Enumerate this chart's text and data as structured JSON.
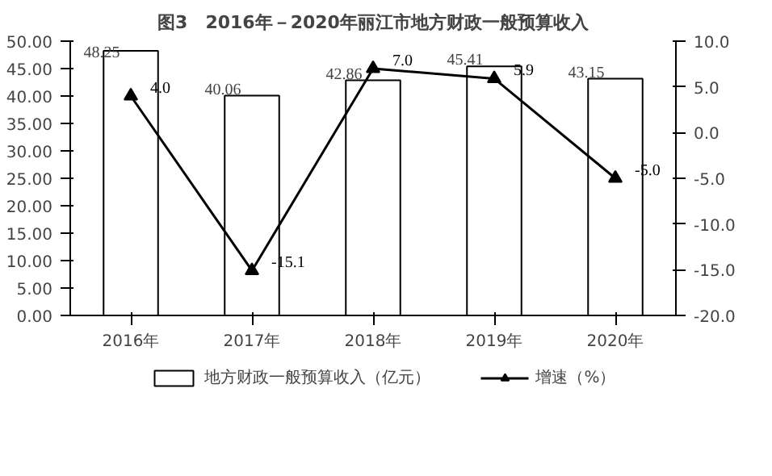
{
  "chart_data": {
    "type": "bar",
    "title": "图3　2016年－2020年丽江市地方财政一般预算收入",
    "categories": [
      "2016年",
      "2017年",
      "2018年",
      "2019年",
      "2020年"
    ],
    "series": [
      {
        "name": "地方财政一般预算收入（亿元）",
        "color": "#ffffff",
        "values": [
          48.25,
          40.06,
          42.86,
          45.41,
          43.15
        ],
        "value_labels": [
          "48.25",
          "40.06",
          "42.86",
          "45.41",
          "43.15"
        ]
      },
      {
        "name": "增速（%）",
        "type": "line",
        "axis": "y2",
        "color": "#000000",
        "values": [
          4.0,
          -15.1,
          7.0,
          5.9,
          -5.0
        ],
        "value_labels": [
          "4.0",
          "-15.1",
          "7.0",
          "5.9",
          "-5.0"
        ]
      }
    ],
    "ylim": [
      0,
      50
    ],
    "yticks": [
      {
        "value": 0,
        "label": "0.00"
      },
      {
        "value": 5,
        "label": "5.00"
      },
      {
        "value": 10,
        "label": "10.00"
      },
      {
        "value": 15,
        "label": "15.00"
      },
      {
        "value": 20,
        "label": "20.00"
      },
      {
        "value": 25,
        "label": "25.00"
      },
      {
        "value": 30,
        "label": "30.00"
      },
      {
        "value": 35,
        "label": "35.00"
      },
      {
        "value": 40,
        "label": "40.00"
      },
      {
        "value": 45,
        "label": "45.00"
      },
      {
        "value": 50,
        "label": "50.00"
      }
    ],
    "y2lim": [
      -20,
      10
    ],
    "y2ticks": [
      {
        "value": -20,
        "label": "-20.0"
      },
      {
        "value": -15,
        "label": "-15.0"
      },
      {
        "value": -10,
        "label": "-10.0"
      },
      {
        "value": -5,
        "label": "-5.0"
      },
      {
        "value": 0,
        "label": "0.0"
      },
      {
        "value": 5,
        "label": "5.0"
      },
      {
        "value": 10,
        "label": "10.0"
      }
    ],
    "marker": "triangle",
    "legend": "bottom",
    "grid": false
  }
}
